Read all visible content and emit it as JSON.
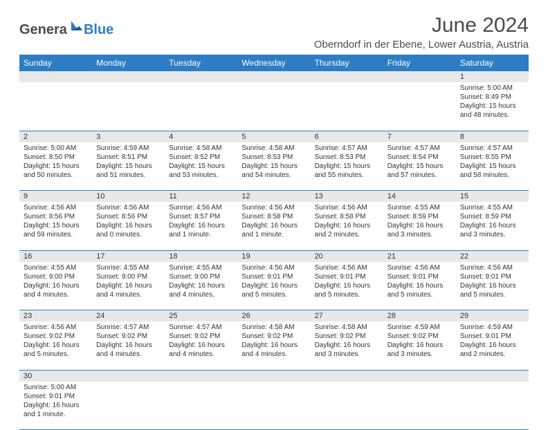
{
  "logo": {
    "word1": "Genera",
    "word2": "Blue"
  },
  "title": "June 2024",
  "location": "Oberndorf in der Ebene, Lower Austria, Austria",
  "colors": {
    "header_bg": "#2d7dc4",
    "header_text": "#ffffff",
    "daynum_bg": "#e8e8e8",
    "border": "#2d7dc4"
  },
  "weekdays": [
    "Sunday",
    "Monday",
    "Tuesday",
    "Wednesday",
    "Thursday",
    "Friday",
    "Saturday"
  ],
  "weeks": [
    {
      "nums": [
        "",
        "",
        "",
        "",
        "",
        "",
        "1"
      ],
      "cells": [
        null,
        null,
        null,
        null,
        null,
        null,
        {
          "sunrise": "Sunrise: 5:00 AM",
          "sunset": "Sunset: 8:49 PM",
          "day1": "Daylight: 15 hours",
          "day2": "and 48 minutes."
        }
      ]
    },
    {
      "nums": [
        "2",
        "3",
        "4",
        "5",
        "6",
        "7",
        "8"
      ],
      "cells": [
        {
          "sunrise": "Sunrise: 5:00 AM",
          "sunset": "Sunset: 8:50 PM",
          "day1": "Daylight: 15 hours",
          "day2": "and 50 minutes."
        },
        {
          "sunrise": "Sunrise: 4:59 AM",
          "sunset": "Sunset: 8:51 PM",
          "day1": "Daylight: 15 hours",
          "day2": "and 51 minutes."
        },
        {
          "sunrise": "Sunrise: 4:58 AM",
          "sunset": "Sunset: 8:52 PM",
          "day1": "Daylight: 15 hours",
          "day2": "and 53 minutes."
        },
        {
          "sunrise": "Sunrise: 4:58 AM",
          "sunset": "Sunset: 8:53 PM",
          "day1": "Daylight: 15 hours",
          "day2": "and 54 minutes."
        },
        {
          "sunrise": "Sunrise: 4:57 AM",
          "sunset": "Sunset: 8:53 PM",
          "day1": "Daylight: 15 hours",
          "day2": "and 55 minutes."
        },
        {
          "sunrise": "Sunrise: 4:57 AM",
          "sunset": "Sunset: 8:54 PM",
          "day1": "Daylight: 15 hours",
          "day2": "and 57 minutes."
        },
        {
          "sunrise": "Sunrise: 4:57 AM",
          "sunset": "Sunset: 8:55 PM",
          "day1": "Daylight: 15 hours",
          "day2": "and 58 minutes."
        }
      ]
    },
    {
      "nums": [
        "9",
        "10",
        "11",
        "12",
        "13",
        "14",
        "15"
      ],
      "cells": [
        {
          "sunrise": "Sunrise: 4:56 AM",
          "sunset": "Sunset: 8:56 PM",
          "day1": "Daylight: 15 hours",
          "day2": "and 59 minutes."
        },
        {
          "sunrise": "Sunrise: 4:56 AM",
          "sunset": "Sunset: 8:56 PM",
          "day1": "Daylight: 16 hours",
          "day2": "and 0 minutes."
        },
        {
          "sunrise": "Sunrise: 4:56 AM",
          "sunset": "Sunset: 8:57 PM",
          "day1": "Daylight: 16 hours",
          "day2": "and 1 minute."
        },
        {
          "sunrise": "Sunrise: 4:56 AM",
          "sunset": "Sunset: 8:58 PM",
          "day1": "Daylight: 16 hours",
          "day2": "and 1 minute."
        },
        {
          "sunrise": "Sunrise: 4:56 AM",
          "sunset": "Sunset: 8:58 PM",
          "day1": "Daylight: 16 hours",
          "day2": "and 2 minutes."
        },
        {
          "sunrise": "Sunrise: 4:55 AM",
          "sunset": "Sunset: 8:59 PM",
          "day1": "Daylight: 16 hours",
          "day2": "and 3 minutes."
        },
        {
          "sunrise": "Sunrise: 4:55 AM",
          "sunset": "Sunset: 8:59 PM",
          "day1": "Daylight: 16 hours",
          "day2": "and 3 minutes."
        }
      ]
    },
    {
      "nums": [
        "16",
        "17",
        "18",
        "19",
        "20",
        "21",
        "22"
      ],
      "cells": [
        {
          "sunrise": "Sunrise: 4:55 AM",
          "sunset": "Sunset: 9:00 PM",
          "day1": "Daylight: 16 hours",
          "day2": "and 4 minutes."
        },
        {
          "sunrise": "Sunrise: 4:55 AM",
          "sunset": "Sunset: 9:00 PM",
          "day1": "Daylight: 16 hours",
          "day2": "and 4 minutes."
        },
        {
          "sunrise": "Sunrise: 4:55 AM",
          "sunset": "Sunset: 9:00 PM",
          "day1": "Daylight: 16 hours",
          "day2": "and 4 minutes."
        },
        {
          "sunrise": "Sunrise: 4:56 AM",
          "sunset": "Sunset: 9:01 PM",
          "day1": "Daylight: 16 hours",
          "day2": "and 5 minutes."
        },
        {
          "sunrise": "Sunrise: 4:56 AM",
          "sunset": "Sunset: 9:01 PM",
          "day1": "Daylight: 16 hours",
          "day2": "and 5 minutes."
        },
        {
          "sunrise": "Sunrise: 4:56 AM",
          "sunset": "Sunset: 9:01 PM",
          "day1": "Daylight: 16 hours",
          "day2": "and 5 minutes."
        },
        {
          "sunrise": "Sunrise: 4:56 AM",
          "sunset": "Sunset: 9:01 PM",
          "day1": "Daylight: 16 hours",
          "day2": "and 5 minutes."
        }
      ]
    },
    {
      "nums": [
        "23",
        "24",
        "25",
        "26",
        "27",
        "28",
        "29"
      ],
      "cells": [
        {
          "sunrise": "Sunrise: 4:56 AM",
          "sunset": "Sunset: 9:02 PM",
          "day1": "Daylight: 16 hours",
          "day2": "and 5 minutes."
        },
        {
          "sunrise": "Sunrise: 4:57 AM",
          "sunset": "Sunset: 9:02 PM",
          "day1": "Daylight: 16 hours",
          "day2": "and 4 minutes."
        },
        {
          "sunrise": "Sunrise: 4:57 AM",
          "sunset": "Sunset: 9:02 PM",
          "day1": "Daylight: 16 hours",
          "day2": "and 4 minutes."
        },
        {
          "sunrise": "Sunrise: 4:58 AM",
          "sunset": "Sunset: 9:02 PM",
          "day1": "Daylight: 16 hours",
          "day2": "and 4 minutes."
        },
        {
          "sunrise": "Sunrise: 4:58 AM",
          "sunset": "Sunset: 9:02 PM",
          "day1": "Daylight: 16 hours",
          "day2": "and 3 minutes."
        },
        {
          "sunrise": "Sunrise: 4:59 AM",
          "sunset": "Sunset: 9:02 PM",
          "day1": "Daylight: 16 hours",
          "day2": "and 3 minutes."
        },
        {
          "sunrise": "Sunrise: 4:59 AM",
          "sunset": "Sunset: 9:01 PM",
          "day1": "Daylight: 16 hours",
          "day2": "and 2 minutes."
        }
      ]
    },
    {
      "nums": [
        "30",
        "",
        "",
        "",
        "",
        "",
        ""
      ],
      "cells": [
        {
          "sunrise": "Sunrise: 5:00 AM",
          "sunset": "Sunset: 9:01 PM",
          "day1": "Daylight: 16 hours",
          "day2": "and 1 minute."
        },
        null,
        null,
        null,
        null,
        null,
        null
      ]
    }
  ]
}
